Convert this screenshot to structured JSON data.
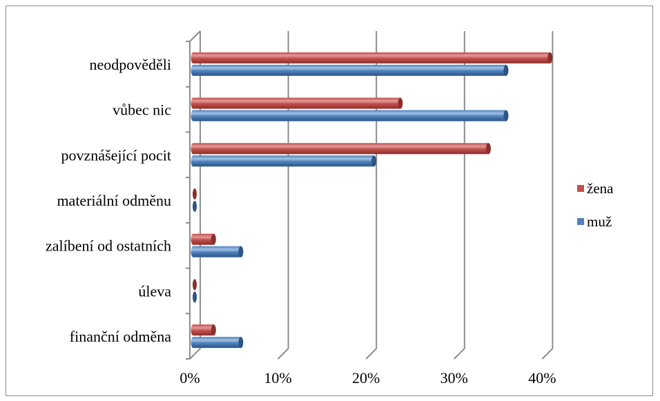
{
  "chart_data": {
    "type": "bar",
    "orientation": "horizontal",
    "style": "3d-cylinder",
    "categories": [
      "neodpověděli",
      "vůbec nic",
      "povznášející pocit",
      "materiální odměnu",
      "zalíbení od ostatních",
      "úleva",
      "finanční odměna"
    ],
    "series": [
      {
        "name": "žena",
        "color": "#c0504d",
        "values": [
          40.5,
          23.5,
          33.5,
          0,
          2.3,
          0,
          2.3
        ]
      },
      {
        "name": "muž",
        "color": "#4f81bd",
        "values": [
          35.5,
          35.5,
          20.5,
          0,
          5.4,
          0,
          5.4
        ]
      }
    ],
    "x_ticks": [
      "0%",
      "10%",
      "20%",
      "30%",
      "40%"
    ],
    "xlim": [
      0,
      40
    ],
    "grid": true,
    "legend_position": "right"
  }
}
